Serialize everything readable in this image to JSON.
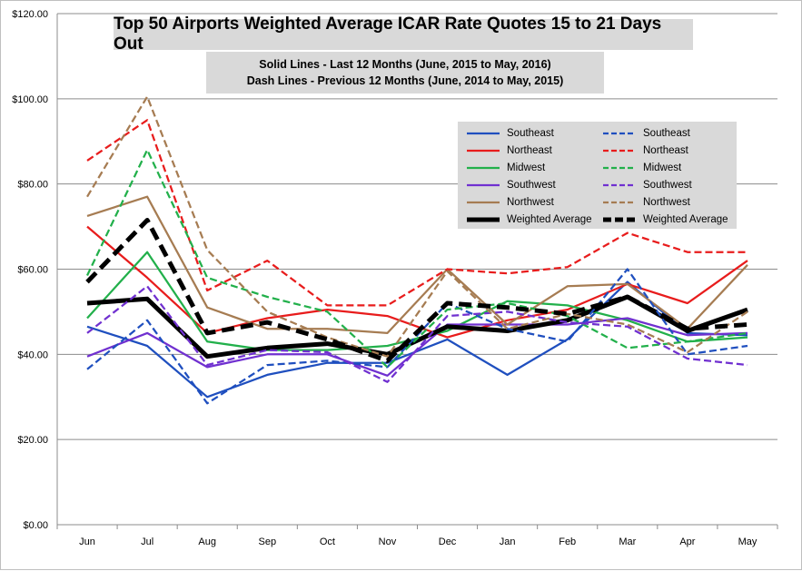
{
  "chart_data": {
    "type": "line",
    "title": "Top 50 Airports Weighted Average ICAR Rate Quotes 15 to 21 Days Out",
    "subtitle_lines": [
      "Solid Lines - Last 12 Months  (June, 2015 to May, 2016)",
      "Dash Lines - Previous 12 Months (June, 2014 to May, 2015)"
    ],
    "categories": [
      "Jun",
      "Jul",
      "Aug",
      "Sep",
      "Oct",
      "Nov",
      "Dec",
      "Jan",
      "Feb",
      "Mar",
      "Apr",
      "May"
    ],
    "yticks": [
      "$0.00",
      "$20.00",
      "$40.00",
      "$60.00",
      "$80.00",
      "$100.00",
      "$120.00"
    ],
    "ylim": [
      0,
      120
    ],
    "grid": true,
    "legend_position": "top-right",
    "series": [
      {
        "name": "Southeast",
        "style": "solid",
        "color": "#1f4fbf",
        "values": [
          46.5,
          42,
          30,
          35.2,
          38,
          38,
          43.5,
          35.2,
          43.5,
          57,
          45,
          44.5
        ]
      },
      {
        "name": "Northeast",
        "style": "solid",
        "color": "#e81c1c",
        "values": [
          70,
          58,
          45,
          48.5,
          50.5,
          49,
          44,
          48,
          50.5,
          56.5,
          52,
          62
        ]
      },
      {
        "name": "Midwest",
        "style": "solid",
        "color": "#22b04b",
        "values": [
          48.5,
          64,
          43,
          41,
          41,
          42,
          45.5,
          52.5,
          51.5,
          48,
          43,
          44
        ]
      },
      {
        "name": "Southwest",
        "style": "solid",
        "color": "#7030d0",
        "values": [
          39.5,
          45,
          37,
          40,
          40,
          35,
          47,
          47,
          47,
          48.5,
          44.5,
          45
        ]
      },
      {
        "name": "Northwest",
        "style": "solid",
        "color": "#a67c52",
        "values": [
          72.5,
          77,
          51,
          46,
          46,
          45,
          60,
          47,
          56,
          56.5,
          46,
          61
        ]
      },
      {
        "name": "Weighted Average",
        "style": "solid",
        "color": "#000000",
        "values": [
          52,
          53,
          39.5,
          41.5,
          42.5,
          40,
          46.5,
          45.5,
          48,
          53.5,
          45.5,
          50.5
        ]
      },
      {
        "name": "Southeast",
        "style": "dash",
        "color": "#1f4fbf",
        "values": [
          36.5,
          48,
          28.5,
          37.5,
          38.5,
          37,
          52,
          46,
          43,
          60,
          40,
          42
        ]
      },
      {
        "name": "Northeast",
        "style": "dash",
        "color": "#e81c1c",
        "values": [
          85.5,
          95,
          55,
          62,
          51.5,
          51.5,
          60,
          59,
          60.5,
          68.5,
          64,
          64
        ]
      },
      {
        "name": "Midwest",
        "style": "dash",
        "color": "#22b04b",
        "values": [
          58.5,
          88,
          58,
          53.5,
          50,
          37,
          50.5,
          52,
          49,
          41.5,
          43,
          45
        ]
      },
      {
        "name": "Southwest",
        "style": "dash",
        "color": "#7030d0",
        "values": [
          45,
          56,
          37.5,
          41,
          40.5,
          33.5,
          49,
          50,
          47.5,
          46.5,
          39,
          37.5
        ]
      },
      {
        "name": "Northwest",
        "style": "dash",
        "color": "#a67c52",
        "values": [
          77,
          100.5,
          64.5,
          50,
          44,
          39.5,
          59.5,
          46,
          49.5,
          47,
          40.5,
          50
        ]
      },
      {
        "name": "Weighted Average",
        "style": "dash",
        "color": "#000000",
        "values": [
          57,
          71.5,
          45,
          47.5,
          43.5,
          38.5,
          52,
          51,
          49.5,
          53.5,
          46,
          47
        ]
      }
    ]
  }
}
